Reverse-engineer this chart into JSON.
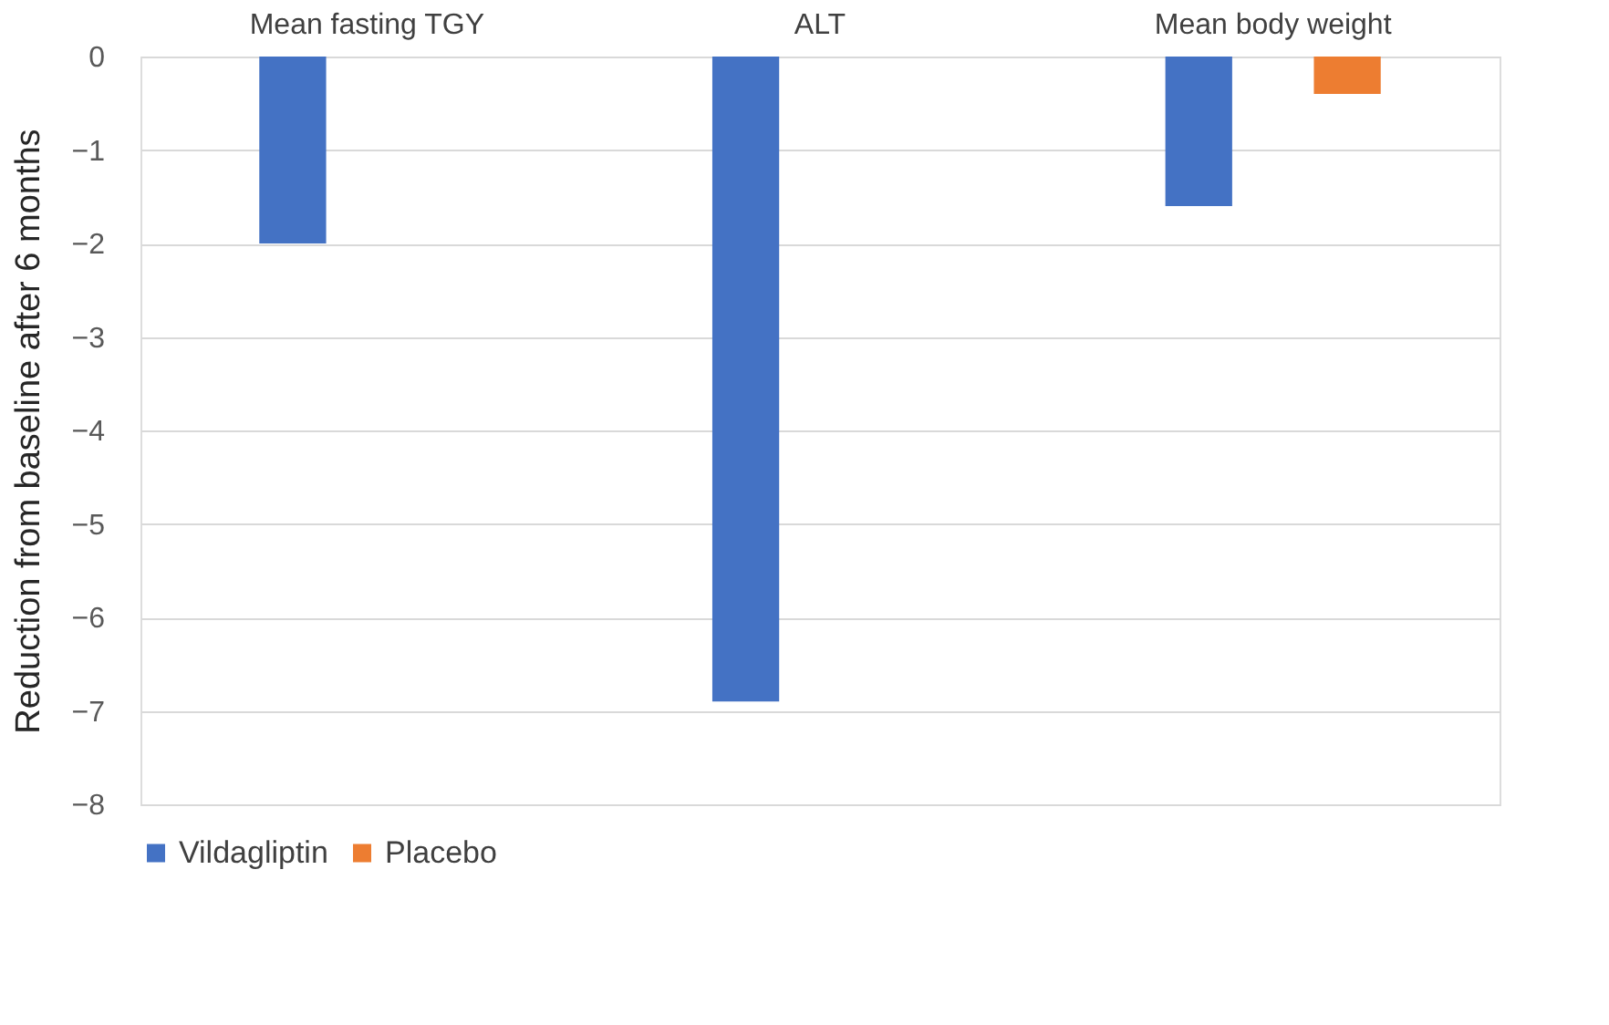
{
  "chart_data": {
    "type": "bar",
    "categories": [
      "Mean fasting TGY",
      "ALT",
      "Mean body weight"
    ],
    "ylabel": "Reduction from baseline after 6 months",
    "series": [
      {
        "name": "Vildagliptin",
        "color": "#4472c4",
        "values": [
          -2.0,
          -6.9,
          -1.6
        ]
      },
      {
        "name": "Placebo",
        "color": "#ed7d31",
        "values": [
          null,
          null,
          -0.4
        ]
      }
    ],
    "ylim": [
      -8,
      0
    ],
    "yticks": [
      0,
      -1,
      -2,
      -3,
      -4,
      -5,
      -6,
      -7,
      -8
    ],
    "grid": "y",
    "legend": "bottom"
  }
}
